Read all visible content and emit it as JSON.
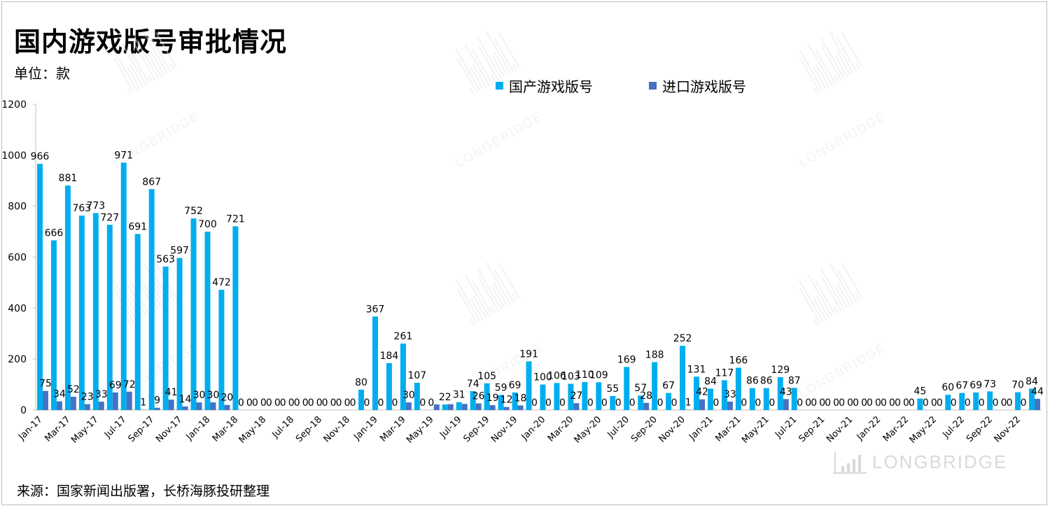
{
  "page": {
    "title": "国内游戏版号审批情况",
    "unit": "单位：款",
    "source": "来源：国家新闻出版署，长桥海豚投研整理",
    "watermark": "LONGBRIDGE"
  },
  "colors": {
    "domestic": "#00AEEF",
    "imported": "#4472C4",
    "axis": "#bfbfbf",
    "watermark": "#e6e6e6"
  },
  "chart_data": {
    "type": "bar",
    "ylim": [
      0,
      1200
    ],
    "yticks": [
      0,
      200,
      400,
      600,
      800,
      1000,
      1200
    ],
    "grid": false,
    "legend_position": "top",
    "categories": [
      "Jan-17",
      "Feb-17",
      "Mar-17",
      "Apr-17",
      "May-17",
      "Jun-17",
      "Jul-17",
      "Aug-17",
      "Sep-17",
      "Oct-17",
      "Nov-17",
      "Dec-17",
      "Jan-18",
      "Feb-18",
      "Mar-18",
      "Apr-18",
      "May-18",
      "Jun-18",
      "Jul-18",
      "Aug-18",
      "Sep-18",
      "Oct-18",
      "Nov-18",
      "Dec-18",
      "Jan-19",
      "Feb-19",
      "Mar-19",
      "Apr-19",
      "May-19",
      "Jun-19",
      "Jul-19",
      "Aug-19",
      "Sep-19",
      "Oct-19",
      "Nov-19",
      "Dec-19",
      "Jan-20",
      "Feb-20",
      "Mar-20",
      "Apr-20",
      "May-20",
      "Jun-20",
      "Jul-20",
      "Aug-20",
      "Sep-20",
      "Oct-20",
      "Nov-20",
      "Dec-20",
      "Jan-21",
      "Feb-21",
      "Mar-21",
      "Apr-21",
      "May-21",
      "Jun-21",
      "Jul-21",
      "Aug-21",
      "Sep-21",
      "Oct-21",
      "Nov-21",
      "Dec-21",
      "Jan-22",
      "Feb-22",
      "Mar-22",
      "Apr-22",
      "May-22",
      "Jun-22",
      "Jul-22",
      "Aug-22",
      "Sep-22",
      "Oct-22",
      "Nov-22",
      "Dec-22"
    ],
    "tick_labels": [
      "Jan-17",
      "Mar-17",
      "May-17",
      "Jul-17",
      "Sep-17",
      "Nov-17",
      "Jan-18",
      "Mar-18",
      "May-18",
      "Jul-18",
      "Sep-18",
      "Nov-18",
      "Jan-19",
      "Mar-19",
      "May-19",
      "Jul-19",
      "Sep-19",
      "Nov-19",
      "Jan-20",
      "Mar-20",
      "May-20",
      "Jul-20",
      "Sep-20",
      "Nov-20",
      "Jan-21",
      "Mar-21",
      "May-21",
      "Jul-21",
      "Sep-21",
      "Nov-21",
      "Jan-22",
      "Mar-22",
      "May-22",
      "Jul-22",
      "Sep-22",
      "Nov-22"
    ],
    "series": [
      {
        "name": "国产游戏版号",
        "values": [
          966,
          666,
          881,
          763,
          773,
          727,
          971,
          691,
          867,
          563,
          597,
          752,
          700,
          472,
          721,
          0,
          0,
          0,
          0,
          0,
          0,
          0,
          0,
          80,
          367,
          184,
          261,
          107,
          0,
          22,
          31,
          74,
          105,
          59,
          69,
          191,
          100,
          106,
          103,
          110,
          109,
          55,
          169,
          57,
          188,
          67,
          252,
          131,
          84,
          117,
          166,
          86,
          86,
          129,
          87,
          0,
          0,
          0,
          0,
          0,
          0,
          0,
          0,
          45,
          0,
          60,
          67,
          69,
          73,
          0,
          70,
          84
        ],
        "labels": [
          "966",
          "666",
          "881",
          "763",
          "773",
          "727",
          "971",
          "691",
          "867",
          "563",
          "597",
          "752",
          "700",
          "472",
          "721",
          "0",
          "0",
          "0",
          "0",
          "0",
          "0",
          "0",
          "0",
          "80",
          "367",
          "184",
          "261",
          "107",
          "0",
          "22",
          "31",
          "74",
          "105",
          "59",
          "69",
          "191",
          "100",
          "106",
          "103",
          "110",
          "109",
          "55",
          "169",
          "57",
          "188",
          "67",
          "252",
          "131",
          "84",
          "117",
          "166",
          "86",
          "86",
          "129",
          "87",
          "0",
          "0",
          "0",
          "0",
          "0",
          "0",
          "0",
          "0",
          "45",
          "0",
          "60",
          "67",
          "69",
          "73",
          "0",
          "70",
          "84"
        ]
      },
      {
        "name": "进口游戏版号",
        "values": [
          75,
          34,
          52,
          23,
          33,
          69,
          72,
          1,
          9,
          41,
          14,
          30,
          30,
          20,
          0,
          0,
          0,
          0,
          0,
          0,
          0,
          0,
          0,
          0,
          0,
          0,
          30,
          0,
          22,
          23,
          24,
          26,
          19,
          12,
          18,
          0,
          0,
          0,
          27,
          0,
          0,
          0,
          0,
          28,
          0,
          0,
          1,
          42,
          0,
          33,
          0,
          0,
          0,
          43,
          0,
          0,
          0,
          0,
          0,
          0,
          0,
          0,
          0,
          0,
          0,
          0,
          0,
          0,
          0,
          0,
          0,
          44
        ],
        "labels": [
          "75",
          "34",
          "52",
          "23",
          "33",
          "69",
          "72",
          "1",
          "9",
          "41",
          "14",
          "30",
          "30",
          "20",
          "0",
          "0",
          "0",
          "0",
          "0",
          "0",
          "0",
          "0",
          "0",
          "0",
          "0",
          "0",
          "30",
          "0",
          "",
          "",
          "",
          "26",
          "19",
          "12",
          "18",
          "0",
          "0",
          "0",
          "27",
          "0",
          "0",
          "0",
          "0",
          "28",
          "0",
          "0",
          "1",
          "42",
          "0",
          "33",
          "0",
          "0",
          "0",
          "43",
          "0",
          "0",
          "0",
          "0",
          "0",
          "0",
          "0",
          "0",
          "0",
          "0",
          "0",
          "0",
          "0",
          "0",
          "0",
          "0",
          "0",
          "44"
        ]
      }
    ]
  }
}
